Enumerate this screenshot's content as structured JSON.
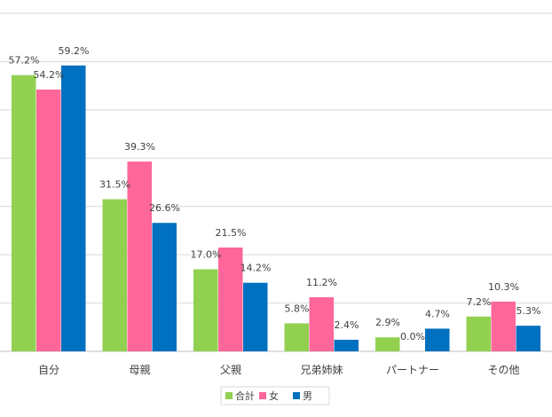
{
  "chart_data": {
    "type": "bar",
    "categories": [
      "自分",
      "母親",
      "父親",
      "兄弟姉妹",
      "パートナー",
      "その他"
    ],
    "series": [
      {
        "name": "合計",
        "color": "#92D050",
        "values": [
          57.2,
          31.5,
          17.0,
          5.8,
          2.9,
          7.2
        ],
        "labels": [
          "57.2%",
          "31.5%",
          "17.0%",
          "5.8%",
          "2.9%",
          "7.2%"
        ]
      },
      {
        "name": "女",
        "color": "#FF6699",
        "values": [
          54.2,
          39.3,
          21.5,
          11.2,
          0.0,
          10.3
        ],
        "labels": [
          "54.2%",
          "39.3%",
          "21.5%",
          "11.2%",
          "0.0%",
          "10.3%"
        ]
      },
      {
        "name": "男",
        "color": "#0070C0",
        "values": [
          59.2,
          26.6,
          14.2,
          2.4,
          4.7,
          5.3
        ],
        "labels": [
          "59.2%",
          "26.6%",
          "14.2%",
          "2.4%",
          "4.7%",
          "5.3%"
        ]
      }
    ],
    "ylim": [
      0,
      70
    ],
    "grid": true,
    "legend_position": "bottom",
    "gridline_color": "#D9D9D9",
    "axis_color": "#BFBFBF",
    "frame_color": "#D9D9D9"
  }
}
